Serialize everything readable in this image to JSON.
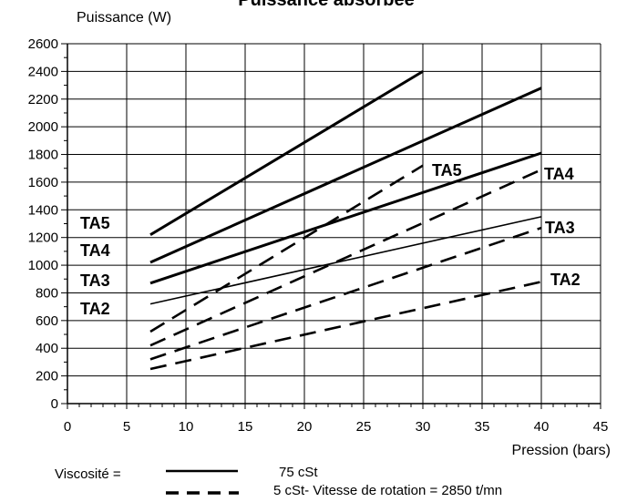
{
  "chart_data": {
    "type": "line",
    "title": "Puissance absorbée",
    "ylabel": "Puissance (W)",
    "xlabel": "Pression  (bars)",
    "xlim": [
      0,
      45
    ],
    "ylim": [
      0,
      2600
    ],
    "x_ticks": [
      0,
      5,
      10,
      15,
      20,
      25,
      30,
      35,
      40,
      45
    ],
    "y_ticks": [
      0,
      200,
      400,
      600,
      800,
      1000,
      1200,
      1400,
      1600,
      1800,
      2000,
      2200,
      2400,
      2600
    ],
    "grid": true,
    "series": [
      {
        "label": "TA5",
        "style": "solid",
        "points": [
          [
            7,
            1220
          ],
          [
            30,
            2400
          ]
        ]
      },
      {
        "label": "TA4",
        "style": "solid",
        "points": [
          [
            7,
            1020
          ],
          [
            40,
            2280
          ]
        ]
      },
      {
        "label": "TA3",
        "style": "solid",
        "points": [
          [
            7,
            870
          ],
          [
            40,
            1810
          ]
        ]
      },
      {
        "label": "TA2",
        "style": "solid",
        "points": [
          [
            7,
            720
          ],
          [
            40,
            1350
          ]
        ]
      },
      {
        "label": "TA5",
        "style": "dashed",
        "points": [
          [
            7,
            520
          ],
          [
            30,
            1720
          ]
        ]
      },
      {
        "label": "TA4",
        "style": "dashed",
        "points": [
          [
            7,
            420
          ],
          [
            40,
            1690
          ]
        ]
      },
      {
        "label": "TA3",
        "style": "dashed",
        "points": [
          [
            7,
            320
          ],
          [
            40,
            1270
          ]
        ]
      },
      {
        "label": "TA2",
        "style": "dashed",
        "points": [
          [
            7,
            250
          ],
          [
            40,
            880
          ]
        ]
      }
    ],
    "annotations": {
      "left_labels": [
        "TA5",
        "TA4",
        "TA3",
        "TA2"
      ],
      "dashed_end_labels": [
        "TA5",
        "TA4",
        "TA3",
        "TA2"
      ]
    },
    "legend": {
      "title": "Viscosité  =",
      "solid_label": "75 cSt",
      "dashed_label": "5 cSt- Vitesse de rotation = 2850 t/mn",
      "placement": "bottom"
    }
  }
}
